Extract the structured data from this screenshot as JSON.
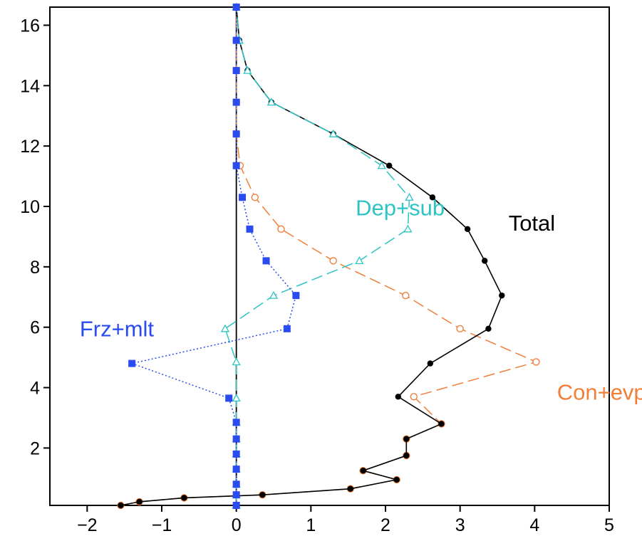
{
  "chart_data": {
    "type": "line",
    "title": "",
    "xlabel": "",
    "ylabel": "",
    "xlim": [
      -2.5,
      5
    ],
    "ylim": [
      0.1,
      16.6
    ],
    "x_ticks": [
      -2,
      -1,
      0,
      1,
      2,
      3,
      4,
      5
    ],
    "x_tick_labels": [
      "−2",
      "−1",
      "0",
      "1",
      "2",
      "3",
      "4",
      "5"
    ],
    "y_ticks": [
      2,
      4,
      6,
      8,
      10,
      12,
      14,
      16
    ],
    "y_tick_labels": [
      "2",
      "4",
      "6",
      "8",
      "10",
      "12",
      "14",
      "16"
    ],
    "grid": false,
    "zero_line": true,
    "series": [
      {
        "name": "Total",
        "color": "#000000",
        "marker": "filled-circle",
        "line_style": "solid",
        "label_at": [
          3.65,
          9.2
        ],
        "points": [
          [
            -1.55,
            0.1
          ],
          [
            -1.3,
            0.22
          ],
          [
            -0.7,
            0.35
          ],
          [
            0.35,
            0.45
          ],
          [
            1.53,
            0.65
          ],
          [
            2.15,
            0.95
          ],
          [
            1.7,
            1.25
          ],
          [
            2.28,
            1.75
          ],
          [
            2.28,
            2.3
          ],
          [
            2.75,
            2.8
          ],
          [
            2.17,
            3.7
          ],
          [
            2.6,
            4.8
          ],
          [
            3.38,
            5.95
          ],
          [
            3.56,
            7.05
          ],
          [
            3.33,
            8.2
          ],
          [
            3.1,
            9.25
          ],
          [
            2.63,
            10.3
          ],
          [
            2.05,
            11.35
          ],
          [
            1.3,
            12.4
          ],
          [
            0.47,
            13.45
          ],
          [
            0.15,
            14.5
          ],
          [
            0.04,
            15.5
          ],
          [
            0.0,
            16.6
          ]
        ]
      },
      {
        "name": "Dep+sub",
        "color": "#2ec4c4",
        "marker": "open-triangle",
        "line_style": "longdash",
        "label_at": [
          1.6,
          9.7
        ],
        "points": [
          [
            0.0,
            0.1
          ],
          [
            0.0,
            0.45
          ],
          [
            0.0,
            0.8
          ],
          [
            0.0,
            1.3
          ],
          [
            0.0,
            1.8
          ],
          [
            0.0,
            2.3
          ],
          [
            0.0,
            2.85
          ],
          [
            0.0,
            3.65
          ],
          [
            0.0,
            4.85
          ],
          [
            -0.15,
            5.95
          ],
          [
            0.5,
            7.05
          ],
          [
            1.65,
            8.2
          ],
          [
            2.3,
            9.25
          ],
          [
            2.32,
            10.3
          ],
          [
            1.95,
            11.35
          ],
          [
            1.3,
            12.4
          ],
          [
            0.47,
            13.45
          ],
          [
            0.15,
            14.5
          ],
          [
            0.04,
            15.5
          ],
          [
            0.0,
            16.6
          ]
        ]
      },
      {
        "name": "Con+evp",
        "color": "#f07f3a",
        "marker": "open-circle",
        "line_style": "longdash",
        "label_at": [
          4.3,
          3.6
        ],
        "points": [
          [
            -1.55,
            0.1
          ],
          [
            -1.3,
            0.22
          ],
          [
            -0.7,
            0.35
          ],
          [
            0.35,
            0.45
          ],
          [
            1.53,
            0.65
          ],
          [
            2.15,
            0.95
          ],
          [
            1.7,
            1.25
          ],
          [
            2.28,
            1.75
          ],
          [
            2.28,
            2.3
          ],
          [
            2.75,
            2.8
          ],
          [
            2.38,
            3.7
          ],
          [
            4.02,
            4.85
          ],
          [
            3.0,
            5.95
          ],
          [
            2.27,
            7.05
          ],
          [
            1.3,
            8.2
          ],
          [
            0.6,
            9.25
          ],
          [
            0.25,
            10.3
          ],
          [
            0.05,
            11.35
          ],
          [
            0.0,
            12.4
          ],
          [
            0.0,
            13.45
          ],
          [
            0.0,
            14.5
          ],
          [
            0.0,
            15.5
          ],
          [
            0.0,
            16.6
          ]
        ]
      },
      {
        "name": "Frz+mlt",
        "color": "#2a4bf0",
        "marker": "filled-square",
        "line_style": "dotted",
        "label_at": [
          -2.1,
          5.7
        ],
        "points": [
          [
            0.0,
            0.1
          ],
          [
            0.0,
            0.45
          ],
          [
            0.0,
            0.8
          ],
          [
            0.0,
            1.3
          ],
          [
            0.0,
            1.8
          ],
          [
            0.0,
            2.3
          ],
          [
            0.0,
            2.85
          ],
          [
            -0.1,
            3.65
          ],
          [
            -1.4,
            4.8
          ],
          [
            0.68,
            5.95
          ],
          [
            0.8,
            7.05
          ],
          [
            0.4,
            8.2
          ],
          [
            0.18,
            9.25
          ],
          [
            0.08,
            10.3
          ],
          [
            0.0,
            11.35
          ],
          [
            0.0,
            12.4
          ],
          [
            0.0,
            13.45
          ],
          [
            0.0,
            14.5
          ],
          [
            0.0,
            15.5
          ],
          [
            0.0,
            16.6
          ]
        ]
      }
    ]
  }
}
